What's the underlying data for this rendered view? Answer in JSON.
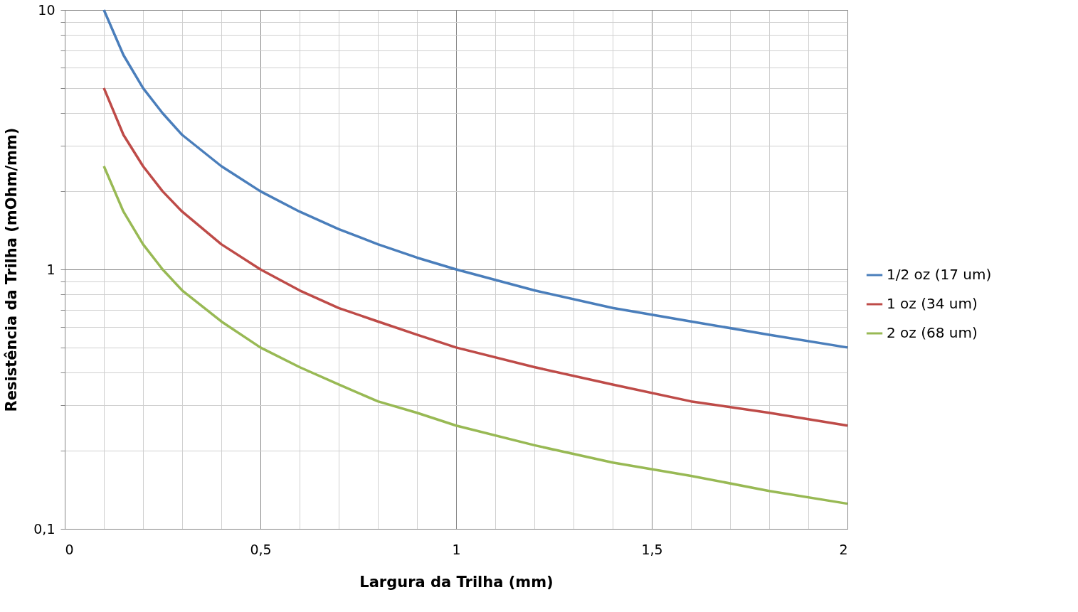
{
  "chart_data": {
    "type": "line",
    "xlabel": "Largura da Trilha (mm)",
    "ylabel": "Resistência da Trilha (mOhm/mm)",
    "x": [
      0.1,
      0.15,
      0.2,
      0.25,
      0.3,
      0.4,
      0.5,
      0.6,
      0.7,
      0.8,
      0.9,
      1.0,
      1.2,
      1.4,
      1.6,
      1.8,
      2.0
    ],
    "series": [
      {
        "name": "1/2 oz (17 um)",
        "color": "#4a7ebb",
        "values": [
          10,
          6.7,
          5,
          4,
          3.3,
          2.5,
          2,
          1.67,
          1.43,
          1.25,
          1.11,
          1,
          0.83,
          0.71,
          0.63,
          0.56,
          0.5
        ]
      },
      {
        "name": "1 oz (34 um)",
        "color": "#be4b48",
        "values": [
          5,
          3.3,
          2.5,
          2,
          1.67,
          1.25,
          1,
          0.83,
          0.71,
          0.63,
          0.56,
          0.5,
          0.42,
          0.36,
          0.31,
          0.28,
          0.25
        ]
      },
      {
        "name": "2 oz (68 um)",
        "color": "#98b954",
        "values": [
          2.5,
          1.67,
          1.25,
          1,
          0.83,
          0.63,
          0.5,
          0.42,
          0.36,
          0.31,
          0.28,
          0.25,
          0.21,
          0.18,
          0.16,
          0.14,
          0.125
        ]
      }
    ],
    "log": "y",
    "xlim": [
      0,
      2
    ],
    "ylim": [
      0.1,
      10
    ],
    "xticks": [
      {
        "value": 0,
        "label": "0"
      },
      {
        "value": 0.1,
        "label": null
      },
      {
        "value": 0.2,
        "label": null
      },
      {
        "value": 0.3,
        "label": null
      },
      {
        "value": 0.4,
        "label": null
      },
      {
        "value": 0.5,
        "label": "0,5"
      },
      {
        "value": 0.6,
        "label": null
      },
      {
        "value": 0.7,
        "label": null
      },
      {
        "value": 0.8,
        "label": null
      },
      {
        "value": 0.9,
        "label": null
      },
      {
        "value": 1,
        "label": "1"
      },
      {
        "value": 1.1,
        "label": null
      },
      {
        "value": 1.2,
        "label": null
      },
      {
        "value": 1.3,
        "label": null
      },
      {
        "value": 1.4,
        "label": null
      },
      {
        "value": 1.5,
        "label": "1,5"
      },
      {
        "value": 1.6,
        "label": null
      },
      {
        "value": 1.7,
        "label": null
      },
      {
        "value": 1.8,
        "label": null
      },
      {
        "value": 1.9,
        "label": null
      },
      {
        "value": 2,
        "label": "2"
      }
    ],
    "yticks": [
      {
        "value": 0.1,
        "label": "0,1"
      },
      {
        "value": 0.2,
        "label": null
      },
      {
        "value": 0.3,
        "label": null
      },
      {
        "value": 0.4,
        "label": null
      },
      {
        "value": 0.5,
        "label": null
      },
      {
        "value": 0.6,
        "label": null
      },
      {
        "value": 0.7,
        "label": null
      },
      {
        "value": 0.8,
        "label": null
      },
      {
        "value": 0.9,
        "label": null
      },
      {
        "value": 1,
        "label": "1"
      },
      {
        "value": 2,
        "label": null
      },
      {
        "value": 3,
        "label": null
      },
      {
        "value": 4,
        "label": null
      },
      {
        "value": 5,
        "label": null
      },
      {
        "value": 6,
        "label": null
      },
      {
        "value": 7,
        "label": null
      },
      {
        "value": 8,
        "label": null
      },
      {
        "value": 9,
        "label": null
      },
      {
        "value": 10,
        "label": "10"
      }
    ],
    "grid": true,
    "legend": "right",
    "marker": "none",
    "line_style": "solid"
  }
}
